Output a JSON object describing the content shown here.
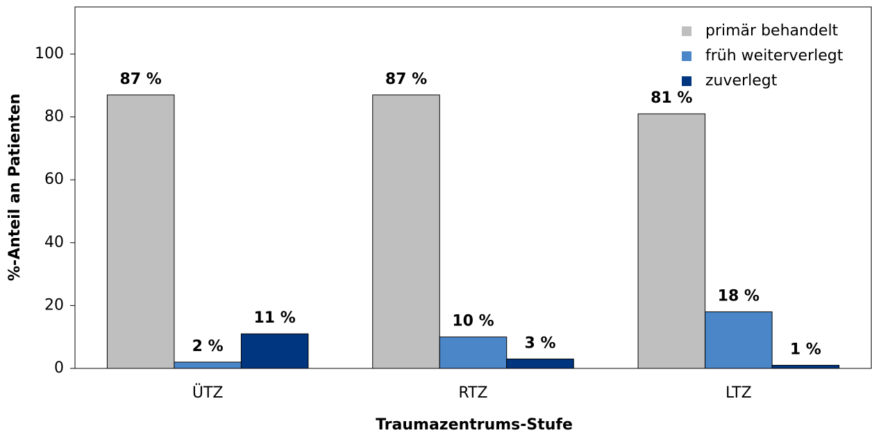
{
  "chart_data": {
    "type": "bar",
    "categories": [
      "ÜTZ",
      "RTZ",
      "LTZ"
    ],
    "series": [
      {
        "name": "primär behandelt",
        "color": "#bfbfbf",
        "values": [
          87,
          87,
          81
        ],
        "value_labels": [
          "87 %",
          "87 %",
          "81 %"
        ]
      },
      {
        "name": "früh weiterverlegt",
        "color": "#4a86c8",
        "values": [
          2,
          10,
          18
        ],
        "value_labels": [
          "2 %",
          "10 %",
          "18 %"
        ]
      },
      {
        "name": "zuverlegt",
        "color": "#003580",
        "values": [
          11,
          3,
          1
        ],
        "value_labels": [
          "11 %",
          "3 %",
          "1 %"
        ]
      }
    ],
    "xlabel": "Traumazentrums-Stufe",
    "ylabel": "%-Anteil an Patienten",
    "ylim": [
      0,
      115
    ],
    "yticks": [
      0,
      20,
      40,
      60,
      80,
      100
    ],
    "grid": false,
    "legend": "upper right"
  }
}
